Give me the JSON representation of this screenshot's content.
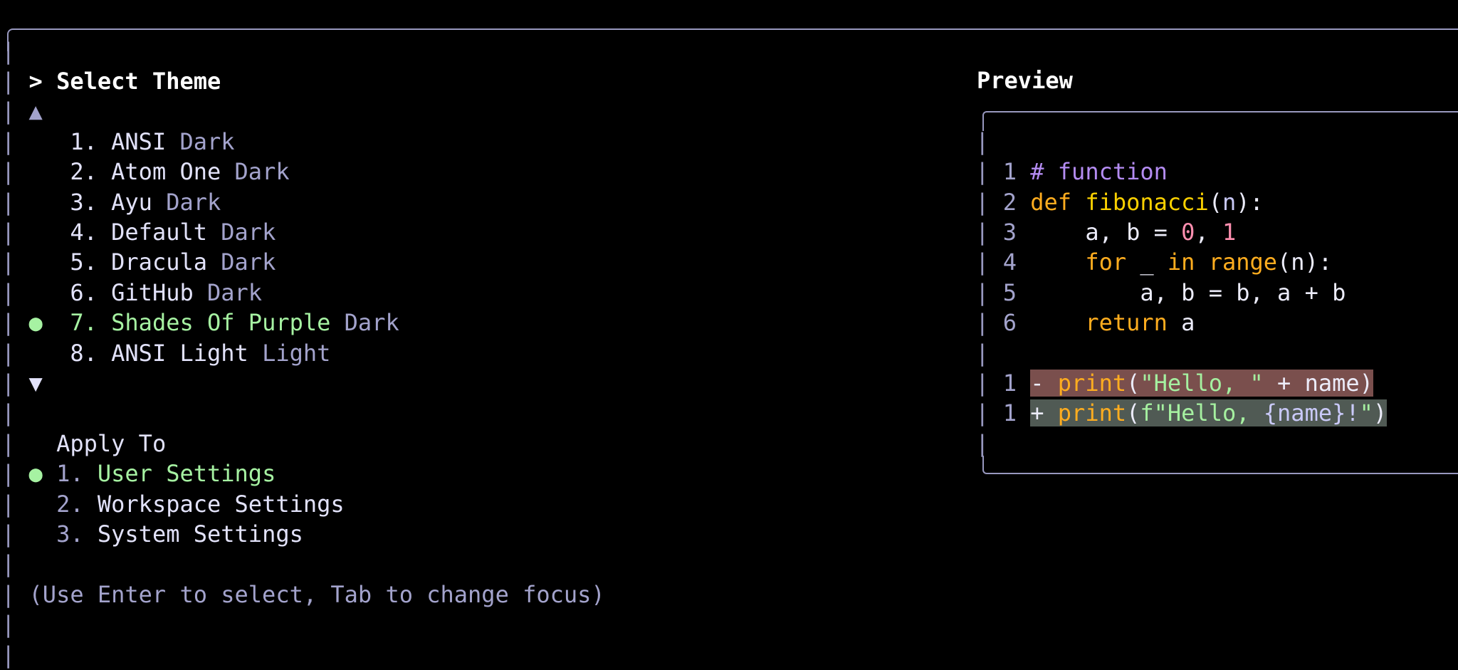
{
  "theme_panel": {
    "title_prefix": ">",
    "title": "Select Theme",
    "scroll_up": "▲",
    "scroll_down": "▼",
    "themes": [
      {
        "number": "1.",
        "name": "ANSI",
        "type": "Dark",
        "selected": false
      },
      {
        "number": "2.",
        "name": "Atom One",
        "type": "Dark",
        "selected": false
      },
      {
        "number": "3.",
        "name": "Ayu",
        "type": "Dark",
        "selected": false
      },
      {
        "number": "4.",
        "name": "Default",
        "type": "Dark",
        "selected": false
      },
      {
        "number": "5.",
        "name": "Dracula",
        "type": "Dark",
        "selected": false
      },
      {
        "number": "6.",
        "name": "GitHub",
        "type": "Dark",
        "selected": false
      },
      {
        "number": "7.",
        "name": "Shades Of Purple",
        "type": "Dark",
        "selected": true
      },
      {
        "number": "8.",
        "name": "ANSI Light",
        "type": "Light",
        "selected": false
      }
    ],
    "selected_marker": "●"
  },
  "apply_to": {
    "title": "Apply To",
    "options": [
      {
        "number": "1.",
        "label": "User Settings",
        "selected": true
      },
      {
        "number": "2.",
        "label": "Workspace Settings",
        "selected": false
      },
      {
        "number": "3.",
        "label": "System Settings",
        "selected": false
      }
    ]
  },
  "hint": "(Use Enter to select, Tab to change focus)",
  "preview": {
    "title": "Preview",
    "code_lines": [
      {
        "ln": "1",
        "tokens": [
          [
            "cm",
            "# function"
          ]
        ]
      },
      {
        "ln": "2",
        "tokens": [
          [
            "kw",
            "def "
          ],
          [
            "fn",
            "fibonacci"
          ],
          [
            "plain",
            "("
          ],
          [
            "var",
            "n"
          ],
          [
            "plain",
            "):"
          ]
        ]
      },
      {
        "ln": "3",
        "tokens": [
          [
            "plain",
            "    a, b = "
          ],
          [
            "num",
            "0"
          ],
          [
            "plain",
            ", "
          ],
          [
            "num",
            "1"
          ]
        ]
      },
      {
        "ln": "4",
        "tokens": [
          [
            "plain",
            "    "
          ],
          [
            "kw",
            "for"
          ],
          [
            "plain",
            " _ "
          ],
          [
            "kw",
            "in "
          ],
          [
            "kw",
            "range"
          ],
          [
            "plain",
            "(n):"
          ]
        ]
      },
      {
        "ln": "5",
        "tokens": [
          [
            "plain",
            "        a, b = b, a + b"
          ]
        ]
      },
      {
        "ln": "6",
        "tokens": [
          [
            "plain",
            "    "
          ],
          [
            "kw",
            "return"
          ],
          [
            "plain",
            " a"
          ]
        ]
      }
    ],
    "diff_lines": [
      {
        "ln": "1",
        "kind": "del",
        "tokens": [
          [
            "plain",
            "- "
          ],
          [
            "kw",
            "print"
          ],
          [
            "plain",
            "("
          ],
          [
            "str",
            "\"Hello, \""
          ],
          [
            "plain",
            " + name)"
          ]
        ]
      },
      {
        "ln": "1",
        "kind": "add",
        "tokens": [
          [
            "plain",
            "+ "
          ],
          [
            "kw",
            "print"
          ],
          [
            "plain",
            "("
          ],
          [
            "str",
            "f\"Hello, "
          ],
          [
            "var",
            "{name}!"
          ],
          [
            "str",
            "\""
          ],
          [
            "plain",
            ")"
          ]
        ]
      }
    ]
  },
  "colors": {
    "border": "#9898bf",
    "accent_green": "#a6f2a2",
    "dim": "#a3a3cc",
    "keyword": "#ffad1f",
    "diff_removed_bg": "#7a4f4d",
    "diff_added_bg": "#505a54"
  }
}
